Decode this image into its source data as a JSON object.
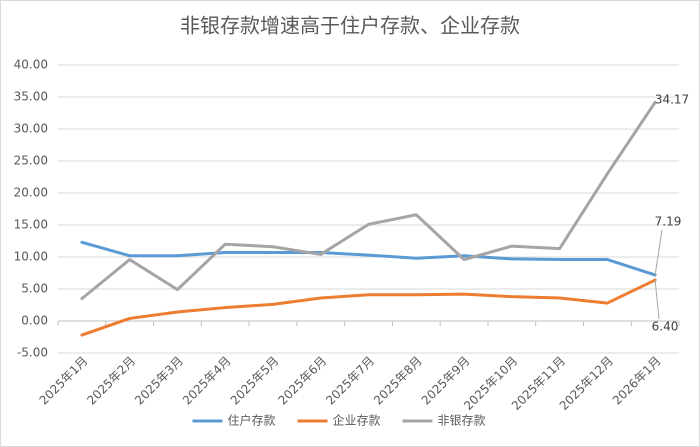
{
  "chart_data": {
    "type": "line",
    "title": "非银存款增速高于住户存款、企业存款",
    "categories": [
      "2025年1月",
      "2025年2月",
      "2025年3月",
      "2025年4月",
      "2025年5月",
      "2025年6月",
      "2025年7月",
      "2025年8月",
      "2025年9月",
      "2025年10月",
      "2025年11月",
      "2025年12月",
      "2026年1月"
    ],
    "series": [
      {
        "name": "住户存款",
        "color": "#5b9bd5",
        "values": [
          12.3,
          10.2,
          10.2,
          10.7,
          10.7,
          10.7,
          10.3,
          9.8,
          10.2,
          9.7,
          9.6,
          9.6,
          7.19
        ],
        "value_labels": [
          null,
          null,
          null,
          null,
          null,
          null,
          null,
          null,
          null,
          null,
          null,
          null,
          "7.19"
        ]
      },
      {
        "name": "企业存款",
        "color": "#ed7d31",
        "values": [
          -2.2,
          0.4,
          1.4,
          2.1,
          2.6,
          3.6,
          4.1,
          4.1,
          4.2,
          3.8,
          3.6,
          2.8,
          6.4
        ],
        "value_labels": [
          null,
          null,
          null,
          null,
          null,
          null,
          null,
          null,
          null,
          null,
          null,
          null,
          "6.40"
        ]
      },
      {
        "name": "非银存款",
        "color": "#a5a5a5",
        "values": [
          3.5,
          9.6,
          4.9,
          12.0,
          11.6,
          10.4,
          15.1,
          16.6,
          9.6,
          11.7,
          11.3,
          23.0,
          34.17
        ],
        "value_labels": [
          null,
          null,
          null,
          null,
          null,
          null,
          null,
          null,
          null,
          null,
          null,
          null,
          "34.17"
        ]
      }
    ],
    "ylim": [
      -5,
      40
    ],
    "yticks": [
      {
        "value": -5,
        "label": "-5.00"
      },
      {
        "value": 0,
        "label": "0.00"
      },
      {
        "value": 5,
        "label": "5.00"
      },
      {
        "value": 10,
        "label": "10.00"
      },
      {
        "value": 15,
        "label": "15.00"
      },
      {
        "value": 20,
        "label": "20.00"
      },
      {
        "value": 25,
        "label": "25.00"
      },
      {
        "value": 30,
        "label": "30.00"
      },
      {
        "value": 35,
        "label": "35.00"
      },
      {
        "value": 40,
        "label": "40.00"
      }
    ],
    "grid": true,
    "legend": "bottom"
  }
}
